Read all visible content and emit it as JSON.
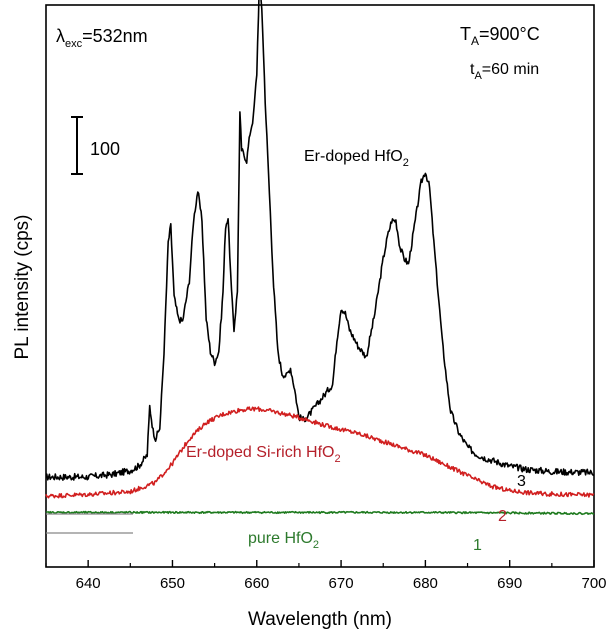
{
  "chart_data": {
    "type": "line",
    "xlabel": "Wavelength (nm)",
    "ylabel": "PL intensity (cps)",
    "xlim": [
      635,
      700
    ],
    "x_ticks": [
      "640",
      "650",
      "660",
      "670",
      "680",
      "690",
      "700"
    ],
    "x_tick_values": [
      640,
      650,
      660,
      670,
      680,
      690,
      700
    ],
    "ylim": [
      -100,
      930
    ],
    "y_ticks_shown": false,
    "scale_bar": {
      "label": "100",
      "value": 100
    },
    "annotations": {
      "excitation_prefix": "λ",
      "excitation_sub": "exc",
      "excitation_value": "=532nm",
      "temperature_prefix": "T",
      "temperature_sub": "A",
      "temperature_value": "=900°C",
      "time_prefix": "t",
      "time_sub": "A",
      "time_value": "=60 min"
    },
    "series": [
      {
        "name": "Er-doped HfO",
        "name_sub": "2",
        "number": "3",
        "color": "#000000",
        "x": [
          635,
          640,
          643,
          645,
          646,
          647,
          647.3,
          647.7,
          648,
          648.5,
          649,
          649.5,
          649.8,
          650.2,
          650.7,
          651.2,
          652,
          652.5,
          653,
          653.5,
          654,
          654.5,
          655,
          655.5,
          656,
          656.3,
          656.6,
          657,
          657.3,
          657.7,
          658,
          658.2,
          658.5,
          658.8,
          659.2,
          659.6,
          660,
          660.3,
          660.6,
          661,
          661.5,
          662,
          662.5,
          663,
          663.5,
          664,
          664.5,
          665,
          665.5,
          666,
          666.5,
          667,
          668,
          669,
          669.5,
          670,
          670.5,
          671,
          672,
          673,
          674,
          675,
          675.5,
          676,
          676.5,
          677,
          677.5,
          678,
          678.5,
          679,
          679.5,
          680,
          680.5,
          681,
          681.5,
          682,
          682.5,
          683,
          684,
          685,
          686,
          687,
          688,
          690,
          692,
          695,
          700
        ],
        "y": [
          0,
          0,
          5,
          12,
          20,
          40,
          130,
          85,
          70,
          90,
          230,
          430,
          460,
          330,
          290,
          285,
          360,
          470,
          525,
          470,
          290,
          230,
          210,
          230,
          340,
          460,
          475,
          340,
          270,
          340,
          665,
          600,
          590,
          580,
          630,
          660,
          740,
          905,
          860,
          690,
          520,
          350,
          230,
          190,
          185,
          200,
          160,
          110,
          105,
          110,
          120,
          130,
          150,
          170,
          250,
          310,
          300,
          270,
          240,
          220,
          300,
          400,
          440,
          470,
          470,
          420,
          400,
          390,
          440,
          490,
          540,
          560,
          530,
          430,
          340,
          250,
          180,
          120,
          80,
          55,
          42,
          35,
          30,
          20,
          14,
          10,
          8
        ]
      },
      {
        "name": "Er-doped Si-rich HfO",
        "name_sub": "2",
        "number": "2",
        "color": "#d12020",
        "x": [
          635,
          640,
          645,
          648,
          650,
          652,
          654,
          656,
          658,
          660,
          662,
          664,
          666,
          668,
          670,
          672,
          674,
          676,
          678,
          680,
          682,
          684,
          686,
          688,
          690,
          693,
          696,
          700
        ],
        "y": [
          0,
          3,
          8,
          25,
          60,
          105,
          135,
          150,
          158,
          160,
          155,
          148,
          140,
          130,
          122,
          115,
          105,
          95,
          85,
          75,
          60,
          45,
          30,
          17,
          10,
          5,
          3,
          2
        ]
      },
      {
        "name": "pure HfO",
        "name_sub": "2",
        "number": "1",
        "color": "#1e7a1e",
        "x": [
          635,
          640,
          650,
          660,
          670,
          680,
          690,
          700
        ],
        "y": [
          0,
          0,
          0,
          0,
          0,
          0,
          -1,
          -2
        ]
      }
    ]
  }
}
